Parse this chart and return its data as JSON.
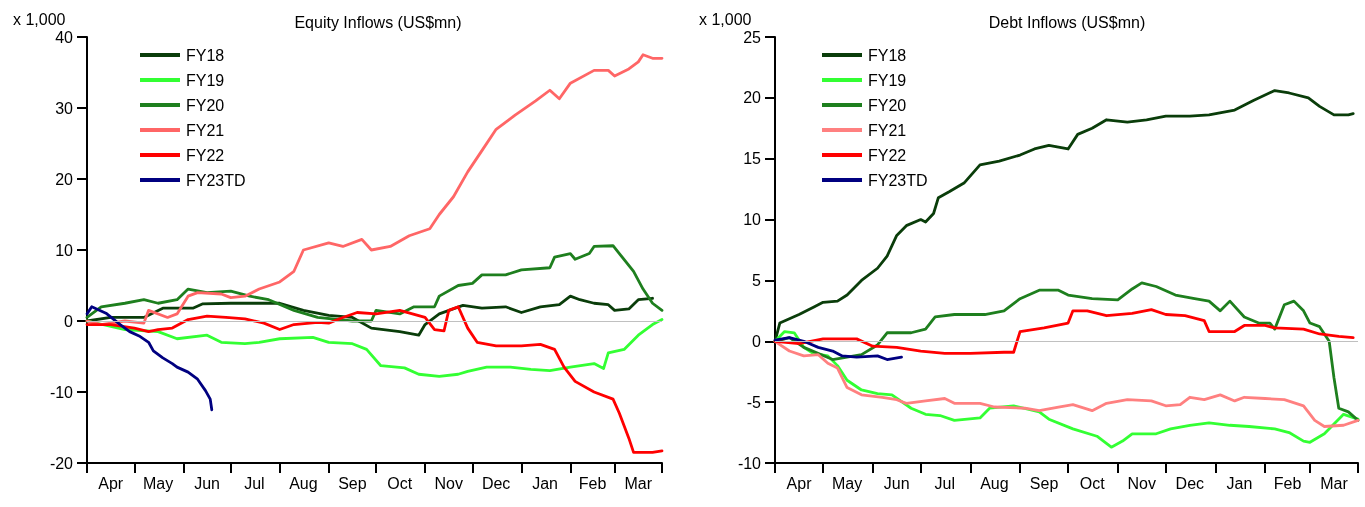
{
  "chart_data": [
    {
      "type": "line",
      "title": "Equity Inflows (US$mn)",
      "ylabel": "x 1,000",
      "legend": "top left",
      "grid": false,
      "marker": "none",
      "line_style": "solid",
      "xlim": [
        "2022-04-01",
        "2023-03-31"
      ],
      "ylim": [
        -20,
        40
      ],
      "yticks": [
        -20,
        -10,
        0,
        10,
        20,
        30,
        40
      ],
      "xticks": [
        {
          "value": "2022-04-01",
          "label": null
        },
        {
          "value": "2022-04-16",
          "label": "Apr"
        },
        {
          "value": "2022-05-01",
          "label": null
        },
        {
          "value": "2022-05-16",
          "label": "May"
        },
        {
          "value": "2022-06-01",
          "label": null
        },
        {
          "value": "2022-06-16",
          "label": "Jun"
        },
        {
          "value": "2022-07-01",
          "label": null
        },
        {
          "value": "2022-07-16",
          "label": "Jul"
        },
        {
          "value": "2022-08-01",
          "label": null
        },
        {
          "value": "2022-08-16",
          "label": "Aug"
        },
        {
          "value": "2022-09-01",
          "label": null
        },
        {
          "value": "2022-09-16",
          "label": "Sep"
        },
        {
          "value": "2022-10-01",
          "label": null
        },
        {
          "value": "2022-10-16",
          "label": "Oct"
        },
        {
          "value": "2022-11-01",
          "label": null
        },
        {
          "value": "2022-11-16",
          "label": "Nov"
        },
        {
          "value": "2022-12-01",
          "label": null
        },
        {
          "value": "2022-12-16",
          "label": "Dec"
        },
        {
          "value": "2023-01-01",
          "label": null
        },
        {
          "value": "2023-01-16",
          "label": "Jan"
        },
        {
          "value": "2023-02-01",
          "label": null
        },
        {
          "value": "2023-02-15",
          "label": "Feb"
        },
        {
          "value": "2023-03-01",
          "label": null
        },
        {
          "value": "2023-03-16",
          "label": "Mar"
        },
        {
          "value": "2023-03-31",
          "label": null
        }
      ],
      "ref_lines": [
        {
          "axis": "y",
          "value": 0,
          "color": "#c0c0c0"
        }
      ],
      "series": [
        {
          "name": "FY18",
          "color": "#0a3d0a",
          "x": [
            "2022-04-01",
            "2022-04-16",
            "2022-05-07",
            "2022-05-19",
            "2022-06-07",
            "2022-06-13",
            "2022-07-01",
            "2022-07-16",
            "2022-08-01",
            "2022-08-16",
            "2022-09-01",
            "2022-09-16",
            "2022-09-28",
            "2022-10-16",
            "2022-10-28",
            "2022-11-01",
            "2022-11-10",
            "2022-11-25",
            "2022-12-07",
            "2022-12-22",
            "2023-01-01",
            "2023-01-13",
            "2023-01-25",
            "2023-02-01",
            "2023-02-07",
            "2023-02-16",
            "2023-02-25",
            "2023-03-01",
            "2023-03-10",
            "2023-03-16",
            "2023-03-25"
          ],
          "values": [
            0,
            0.5,
            0.5,
            1.8,
            1.8,
            2.4,
            2.5,
            2.5,
            2.5,
            1.5,
            0.8,
            0.5,
            -1,
            -1.5,
            -2,
            -0.5,
            1,
            2.2,
            1.8,
            2,
            1.2,
            2,
            2.3,
            3.5,
            3,
            2.5,
            2.3,
            1.5,
            1.7,
            3,
            3.2
          ]
        },
        {
          "name": "FY19",
          "color": "#33ff33",
          "x": [
            "2022-04-01",
            "2022-04-25",
            "2022-05-16",
            "2022-05-28",
            "2022-06-16",
            "2022-06-25",
            "2022-07-10",
            "2022-07-19",
            "2022-08-01",
            "2022-08-22",
            "2022-09-01",
            "2022-09-16",
            "2022-09-25",
            "2022-10-04",
            "2022-10-19",
            "2022-10-28",
            "2022-11-10",
            "2022-11-22",
            "2022-11-28",
            "2022-12-10",
            "2022-12-25",
            "2023-01-07",
            "2023-01-19",
            "2023-02-01",
            "2023-02-16",
            "2023-02-22",
            "2023-02-25",
            "2023-03-07",
            "2023-03-16",
            "2023-03-25",
            "2023-03-31"
          ],
          "values": [
            0,
            -1.2,
            -1.5,
            -2.5,
            -2,
            -3,
            -3.2,
            -3,
            -2.5,
            -2.3,
            -3,
            -3.2,
            -4,
            -6.3,
            -6.6,
            -7.5,
            -7.8,
            -7.5,
            -7.1,
            -6.5,
            -6.5,
            -6.8,
            -7,
            -6.5,
            -6,
            -6.7,
            -4.5,
            -4,
            -2,
            -0.5,
            0.2
          ]
        },
        {
          "name": "FY20",
          "color": "#1e7f1e",
          "x": [
            "2022-04-01",
            "2022-04-10",
            "2022-04-25",
            "2022-05-07",
            "2022-05-16",
            "2022-05-28",
            "2022-06-04",
            "2022-06-16",
            "2022-07-01",
            "2022-07-13",
            "2022-07-25",
            "2022-08-10",
            "2022-08-25",
            "2022-09-16",
            "2022-09-28",
            "2022-10-01",
            "2022-10-16",
            "2022-10-25",
            "2022-11-07",
            "2022-11-10",
            "2022-11-22",
            "2022-12-01",
            "2022-12-07",
            "2022-12-22",
            "2023-01-01",
            "2023-01-19",
            "2023-01-22",
            "2023-02-01",
            "2023-02-04",
            "2023-02-13",
            "2023-02-16",
            "2023-02-28",
            "2023-03-04",
            "2023-03-13",
            "2023-03-19",
            "2023-03-25",
            "2023-03-31"
          ],
          "values": [
            0.5,
            2,
            2.5,
            3,
            2.5,
            3,
            4.5,
            4,
            4.2,
            3.5,
            3,
            1.5,
            0.5,
            0,
            0,
            1.5,
            1,
            2,
            2,
            3.5,
            5,
            5.3,
            6.5,
            6.5,
            7.2,
            7.5,
            9,
            9.5,
            8.7,
            9.5,
            10.5,
            10.6,
            9.5,
            7,
            4.5,
            2.5,
            1.5
          ]
        },
        {
          "name": "FY21",
          "color": "#ff6666",
          "x": [
            "2022-04-01",
            "2022-04-10",
            "2022-04-25",
            "2022-05-07",
            "2022-05-10",
            "2022-05-22",
            "2022-05-28",
            "2022-06-04",
            "2022-06-10",
            "2022-06-25",
            "2022-07-01",
            "2022-07-10",
            "2022-07-19",
            "2022-08-01",
            "2022-08-10",
            "2022-08-16",
            "2022-09-01",
            "2022-09-10",
            "2022-09-22",
            "2022-09-28",
            "2022-10-10",
            "2022-10-22",
            "2022-11-04",
            "2022-11-10",
            "2022-11-19",
            "2022-11-28",
            "2022-12-07",
            "2022-12-16",
            "2022-12-28",
            "2023-01-10",
            "2023-01-19",
            "2023-01-25",
            "2023-02-01",
            "2023-02-16",
            "2023-02-25",
            "2023-03-01",
            "2023-03-10",
            "2023-03-16",
            "2023-03-19",
            "2023-03-25",
            "2023-03-31"
          ],
          "values": [
            0,
            -0.5,
            0,
            -0.3,
            1.5,
            0.5,
            1,
            3.5,
            4,
            3.8,
            3.3,
            3.5,
            4.5,
            5.5,
            7,
            10,
            11,
            10.5,
            11.5,
            10,
            10.5,
            12,
            13,
            15,
            17.5,
            21,
            24,
            27,
            29,
            31,
            32.5,
            31.3,
            33.5,
            35.3,
            35.3,
            34.5,
            35.5,
            36.5,
            37.5,
            37,
            37
          ]
        },
        {
          "name": "FY22",
          "color": "#ff0000",
          "x": [
            "2022-04-01",
            "2022-04-16",
            "2022-05-01",
            "2022-05-10",
            "2022-05-16",
            "2022-05-25",
            "2022-06-04",
            "2022-06-16",
            "2022-06-28",
            "2022-07-10",
            "2022-07-22",
            "2022-08-01",
            "2022-08-10",
            "2022-08-25",
            "2022-09-01",
            "2022-09-10",
            "2022-09-19",
            "2022-10-01",
            "2022-10-16",
            "2022-11-01",
            "2022-11-07",
            "2022-11-13",
            "2022-11-16",
            "2022-11-22",
            "2022-11-28",
            "2022-12-04",
            "2022-12-16",
            "2023-01-01",
            "2023-01-13",
            "2023-01-22",
            "2023-01-28",
            "2023-02-04",
            "2023-02-16",
            "2023-02-28",
            "2023-03-04",
            "2023-03-10",
            "2023-03-13",
            "2023-03-25",
            "2023-03-31"
          ],
          "values": [
            -0.5,
            -0.5,
            -1,
            -1.5,
            -1.2,
            -1,
            0.2,
            0.7,
            0.5,
            0.3,
            -0.3,
            -1.2,
            -0.5,
            -0.2,
            -0.3,
            0.5,
            1.2,
            1,
            1.5,
            0.5,
            -1.2,
            -1.4,
            1.5,
            2,
            -1,
            -3,
            -3.5,
            -3.5,
            -3.3,
            -4,
            -6.5,
            -8.5,
            -10,
            -11,
            -13,
            -16.5,
            -18.5,
            -18.5,
            -18.3
          ]
        },
        {
          "name": "FY23TD",
          "color": "#000080",
          "x": [
            "2022-04-01",
            "2022-04-04",
            "2022-04-13",
            "2022-04-22",
            "2022-04-28",
            "2022-05-04",
            "2022-05-10",
            "2022-05-13",
            "2022-05-19",
            "2022-05-25",
            "2022-05-28",
            "2022-06-04",
            "2022-06-10",
            "2022-06-15",
            "2022-06-18",
            "2022-06-19"
          ],
          "values": [
            1,
            2,
            1.1,
            -0.5,
            -1.5,
            -2.1,
            -3,
            -4.2,
            -5.2,
            -6,
            -6.5,
            -7.2,
            -8.2,
            -9.8,
            -11,
            -12.5
          ]
        }
      ]
    },
    {
      "type": "line",
      "title": "Debt Inflows (US$mn)",
      "ylabel": "x 1,000",
      "legend": "top left",
      "grid": false,
      "marker": "none",
      "line_style": "solid",
      "xlim": [
        "2022-04-01",
        "2023-03-31"
      ],
      "ylim": [
        -10,
        25
      ],
      "yticks": [
        -10,
        -5,
        0,
        5,
        10,
        15,
        20,
        25
      ],
      "xticks": [
        {
          "value": "2022-04-01",
          "label": null
        },
        {
          "value": "2022-04-16",
          "label": "Apr"
        },
        {
          "value": "2022-05-01",
          "label": null
        },
        {
          "value": "2022-05-16",
          "label": "May"
        },
        {
          "value": "2022-06-01",
          "label": null
        },
        {
          "value": "2022-06-16",
          "label": "Jun"
        },
        {
          "value": "2022-07-01",
          "label": null
        },
        {
          "value": "2022-07-16",
          "label": "Jul"
        },
        {
          "value": "2022-08-01",
          "label": null
        },
        {
          "value": "2022-08-16",
          "label": "Aug"
        },
        {
          "value": "2022-09-01",
          "label": null
        },
        {
          "value": "2022-09-16",
          "label": "Sep"
        },
        {
          "value": "2022-10-01",
          "label": null
        },
        {
          "value": "2022-10-16",
          "label": "Oct"
        },
        {
          "value": "2022-11-01",
          "label": null
        },
        {
          "value": "2022-11-16",
          "label": "Nov"
        },
        {
          "value": "2022-12-01",
          "label": null
        },
        {
          "value": "2022-12-16",
          "label": "Dec"
        },
        {
          "value": "2023-01-01",
          "label": null
        },
        {
          "value": "2023-01-16",
          "label": "Jan"
        },
        {
          "value": "2023-02-01",
          "label": null
        },
        {
          "value": "2023-02-15",
          "label": "Feb"
        },
        {
          "value": "2023-03-01",
          "label": null
        },
        {
          "value": "2023-03-16",
          "label": "Mar"
        },
        {
          "value": "2023-03-31",
          "label": null
        }
      ],
      "ref_lines": [
        {
          "axis": "y",
          "value": 0,
          "color": "#c0c0c0"
        }
      ],
      "series": [
        {
          "name": "FY18",
          "color": "#0a3d0a",
          "x": [
            "2022-04-01",
            "2022-04-04",
            "2022-04-16",
            "2022-04-25",
            "2022-05-01",
            "2022-05-10",
            "2022-05-16",
            "2022-05-25",
            "2022-06-04",
            "2022-06-10",
            "2022-06-16",
            "2022-06-22",
            "2022-07-01",
            "2022-07-04",
            "2022-07-09",
            "2022-07-12",
            "2022-07-19",
            "2022-07-28",
            "2022-08-07",
            "2022-08-19",
            "2022-09-01",
            "2022-09-10",
            "2022-09-19",
            "2022-10-01",
            "2022-10-07",
            "2022-10-16",
            "2022-10-25",
            "2022-11-07",
            "2022-11-19",
            "2022-12-01",
            "2022-12-16",
            "2022-12-28",
            "2023-01-13",
            "2023-01-25",
            "2023-02-07",
            "2023-02-16",
            "2023-02-28",
            "2023-03-07",
            "2023-03-16",
            "2023-03-25",
            "2023-03-28"
          ],
          "values": [
            0,
            1.5,
            2.2,
            2.8,
            3.2,
            3.3,
            3.8,
            5,
            6,
            7,
            8.7,
            9.5,
            10,
            9.8,
            10.5,
            11.8,
            12.3,
            13,
            14.5,
            14.8,
            15.3,
            15.8,
            16.1,
            15.8,
            17,
            17.5,
            18.2,
            18,
            18.2,
            18.5,
            18.5,
            18.6,
            19,
            19.8,
            20.6,
            20.4,
            20,
            19.3,
            18.6,
            18.6,
            18.7
          ]
        },
        {
          "name": "FY19",
          "color": "#33ff33",
          "x": [
            "2022-04-01",
            "2022-04-07",
            "2022-04-13",
            "2022-04-19",
            "2022-04-25",
            "2022-05-04",
            "2022-05-10",
            "2022-05-16",
            "2022-05-25",
            "2022-06-04",
            "2022-06-13",
            "2022-06-25",
            "2022-07-04",
            "2022-07-13",
            "2022-07-22",
            "2022-08-07",
            "2022-08-13",
            "2022-08-28",
            "2022-09-13",
            "2022-09-19",
            "2022-10-04",
            "2022-10-19",
            "2022-10-28",
            "2022-11-04",
            "2022-11-10",
            "2022-11-25",
            "2022-12-04",
            "2022-12-16",
            "2022-12-28",
            "2023-01-10",
            "2023-01-22",
            "2023-02-07",
            "2023-02-16",
            "2023-02-25",
            "2023-03-01",
            "2023-03-10",
            "2023-03-16",
            "2023-03-22",
            "2023-03-31"
          ],
          "values": [
            0,
            0.8,
            0.7,
            -0.5,
            -1,
            -1.2,
            -2,
            -3.2,
            -4,
            -4.3,
            -4.4,
            -5.5,
            -6,
            -6.1,
            -6.5,
            -6.3,
            -5.5,
            -5.3,
            -5.8,
            -6.4,
            -7.2,
            -7.8,
            -8.7,
            -8.2,
            -7.6,
            -7.6,
            -7.2,
            -6.9,
            -6.7,
            -6.9,
            -7,
            -7.2,
            -7.5,
            -8.2,
            -8.3,
            -7.6,
            -6.8,
            -6,
            -6.4
          ]
        },
        {
          "name": "FY20",
          "color": "#1e7f1e",
          "x": [
            "2022-04-01",
            "2022-04-10",
            "2022-04-19",
            "2022-05-07",
            "2022-05-25",
            "2022-06-04",
            "2022-06-10",
            "2022-06-25",
            "2022-07-04",
            "2022-07-10",
            "2022-07-22",
            "2022-08-10",
            "2022-08-22",
            "2022-09-01",
            "2022-09-13",
            "2022-09-25",
            "2022-10-01",
            "2022-10-16",
            "2022-11-01",
            "2022-11-10",
            "2022-11-16",
            "2022-11-25",
            "2022-12-07",
            "2022-12-19",
            "2022-12-28",
            "2023-01-04",
            "2023-01-10",
            "2023-01-19",
            "2023-01-28",
            "2023-02-04",
            "2023-02-07",
            "2023-02-13",
            "2023-02-19",
            "2023-02-25",
            "2023-03-01",
            "2023-03-07",
            "2023-03-13",
            "2023-03-16",
            "2023-03-19",
            "2023-03-25",
            "2023-03-31"
          ],
          "values": [
            0,
            0.3,
            -0.5,
            -1.5,
            -1.1,
            -0.3,
            0.7,
            0.7,
            1,
            2,
            2.2,
            2.2,
            2.5,
            3.5,
            4.2,
            4.2,
            3.8,
            3.5,
            3.4,
            4.3,
            4.8,
            4.5,
            3.8,
            3.5,
            3.3,
            2.5,
            3.3,
            2,
            1.5,
            1.5,
            1,
            3,
            3.3,
            2.5,
            1.5,
            1.2,
            0,
            -3,
            -5.5,
            -5.8,
            -6.5
          ]
        },
        {
          "name": "FY21",
          "color": "#ff8080",
          "x": [
            "2022-04-01",
            "2022-04-10",
            "2022-04-19",
            "2022-04-28",
            "2022-05-04",
            "2022-05-10",
            "2022-05-16",
            "2022-05-25",
            "2022-06-07",
            "2022-06-16",
            "2022-06-22",
            "2022-07-04",
            "2022-07-16",
            "2022-07-22",
            "2022-08-07",
            "2022-08-16",
            "2022-09-04",
            "2022-09-13",
            "2022-09-25",
            "2022-10-04",
            "2022-10-16",
            "2022-10-25",
            "2022-11-07",
            "2022-11-22",
            "2022-12-01",
            "2022-12-10",
            "2022-12-16",
            "2022-12-25",
            "2023-01-04",
            "2023-01-13",
            "2023-01-19",
            "2023-02-01",
            "2023-02-13",
            "2023-02-25",
            "2023-03-04",
            "2023-03-10",
            "2023-03-22",
            "2023-03-31"
          ],
          "values": [
            0,
            -0.8,
            -1.2,
            -1.1,
            -1.8,
            -2.2,
            -3.8,
            -4.4,
            -4.6,
            -4.8,
            -5.1,
            -4.9,
            -4.7,
            -5.1,
            -5.1,
            -5.4,
            -5.5,
            -5.7,
            -5.4,
            -5.2,
            -5.7,
            -5.1,
            -4.8,
            -4.9,
            -5.3,
            -5.2,
            -4.6,
            -4.8,
            -4.4,
            -4.9,
            -4.6,
            -4.7,
            -4.8,
            -5.3,
            -6.5,
            -7,
            -6.9,
            -6.5
          ]
        },
        {
          "name": "FY22",
          "color": "#ff0000",
          "x": [
            "2022-04-01",
            "2022-04-16",
            "2022-05-01",
            "2022-05-22",
            "2022-06-01",
            "2022-06-16",
            "2022-07-01",
            "2022-07-16",
            "2022-08-01",
            "2022-08-22",
            "2022-08-28",
            "2022-09-01",
            "2022-09-16",
            "2022-10-01",
            "2022-10-04",
            "2022-10-13",
            "2022-10-25",
            "2022-11-10",
            "2022-11-22",
            "2022-12-01",
            "2022-12-13",
            "2022-12-25",
            "2022-12-28",
            "2023-01-13",
            "2023-01-19",
            "2023-02-01",
            "2023-02-07",
            "2023-02-25",
            "2023-03-07",
            "2023-03-19",
            "2023-03-28"
          ],
          "values": [
            0,
            -0.2,
            0.2,
            0.2,
            -0.4,
            -0.5,
            -0.8,
            -1,
            -1,
            -0.9,
            -0.9,
            0.8,
            1.1,
            1.5,
            2.5,
            2.5,
            2.1,
            2.3,
            2.6,
            2.2,
            2.1,
            1.7,
            0.8,
            0.8,
            1.3,
            1.3,
            1.1,
            1,
            0.6,
            0.4,
            0.3
          ]
        },
        {
          "name": "FY23TD",
          "color": "#000080",
          "x": [
            "2022-04-01",
            "2022-04-10",
            "2022-04-19",
            "2022-04-28",
            "2022-05-07",
            "2022-05-13",
            "2022-05-22",
            "2022-06-04",
            "2022-06-10",
            "2022-06-19"
          ],
          "values": [
            0.1,
            0.3,
            0,
            -0.5,
            -0.8,
            -1.2,
            -1.3,
            -1.2,
            -1.5,
            -1.3
          ]
        }
      ]
    }
  ]
}
